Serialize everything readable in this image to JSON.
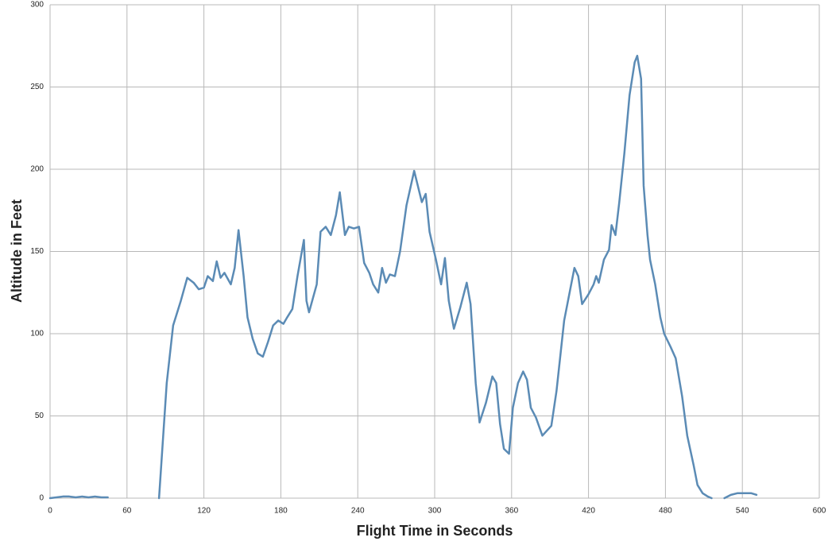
{
  "chart_data": {
    "type": "line",
    "x_label": "Flight Time in Seconds",
    "y_label": "Altitude in Feet",
    "x": [
      0,
      5,
      10,
      15,
      20,
      25,
      30,
      35,
      40,
      45,
      65,
      85,
      91,
      96,
      102,
      107,
      112,
      116,
      120,
      123,
      127,
      130,
      133,
      136,
      141,
      144,
      147,
      151,
      154,
      158,
      162,
      166,
      170,
      174,
      178,
      182,
      185,
      189,
      193,
      198,
      200,
      202,
      208,
      211,
      215,
      219,
      223,
      226,
      230,
      233,
      237,
      241,
      245,
      249,
      252,
      256,
      259,
      262,
      265,
      269,
      273,
      278,
      284,
      290,
      293,
      296,
      301,
      305,
      308,
      311,
      315,
      320,
      325,
      328,
      332,
      335,
      340,
      345,
      348,
      351,
      354,
      358,
      361,
      365,
      369,
      372,
      375,
      379,
      384,
      391,
      395,
      401,
      406,
      409,
      412,
      415,
      420,
      424,
      426,
      428,
      432,
      436,
      438,
      441,
      444,
      448,
      452,
      456,
      458,
      461,
      463,
      466,
      468,
      472,
      476,
      479,
      484,
      488,
      493,
      497,
      502,
      505,
      509,
      513,
      516,
      521,
      526,
      531,
      536,
      541,
      547,
      551
    ],
    "values": [
      0,
      0.5,
      1,
      1,
      0.5,
      1,
      0.5,
      1,
      0.5,
      0.5,
      null,
      0,
      70,
      105,
      120,
      134,
      131,
      127,
      128,
      135,
      132,
      144,
      134,
      137,
      130,
      140,
      163,
      135,
      110,
      97,
      88,
      86,
      95,
      105,
      108,
      106,
      110,
      115,
      135,
      157,
      120,
      113,
      130,
      162,
      165,
      160,
      172,
      186,
      160,
      165,
      164,
      165,
      143,
      137,
      130,
      125,
      140,
      131,
      136,
      135,
      150,
      178,
      199,
      180,
      185,
      162,
      145,
      130,
      146,
      120,
      103,
      116,
      131,
      118,
      70,
      46,
      58,
      74,
      70,
      45,
      30,
      27,
      55,
      70,
      77,
      72,
      55,
      49,
      38,
      44,
      65,
      108,
      128,
      140,
      135,
      118,
      124,
      130,
      135,
      131,
      145,
      151,
      166,
      160,
      180,
      210,
      245,
      265,
      269,
      255,
      190,
      160,
      145,
      130,
      110,
      100,
      92,
      85,
      62,
      38,
      20,
      8,
      3,
      1,
      0,
      null,
      0,
      2,
      3,
      3,
      3,
      2
    ],
    "color": "#5b8bb5",
    "xlim": [
      0,
      600
    ],
    "xticks": [
      0,
      60,
      120,
      180,
      240,
      300,
      360,
      420,
      480,
      540,
      600
    ],
    "ylim": [
      0,
      300
    ],
    "yticks": [
      0,
      50,
      100,
      150,
      200,
      250,
      300
    ],
    "grid": true
  }
}
